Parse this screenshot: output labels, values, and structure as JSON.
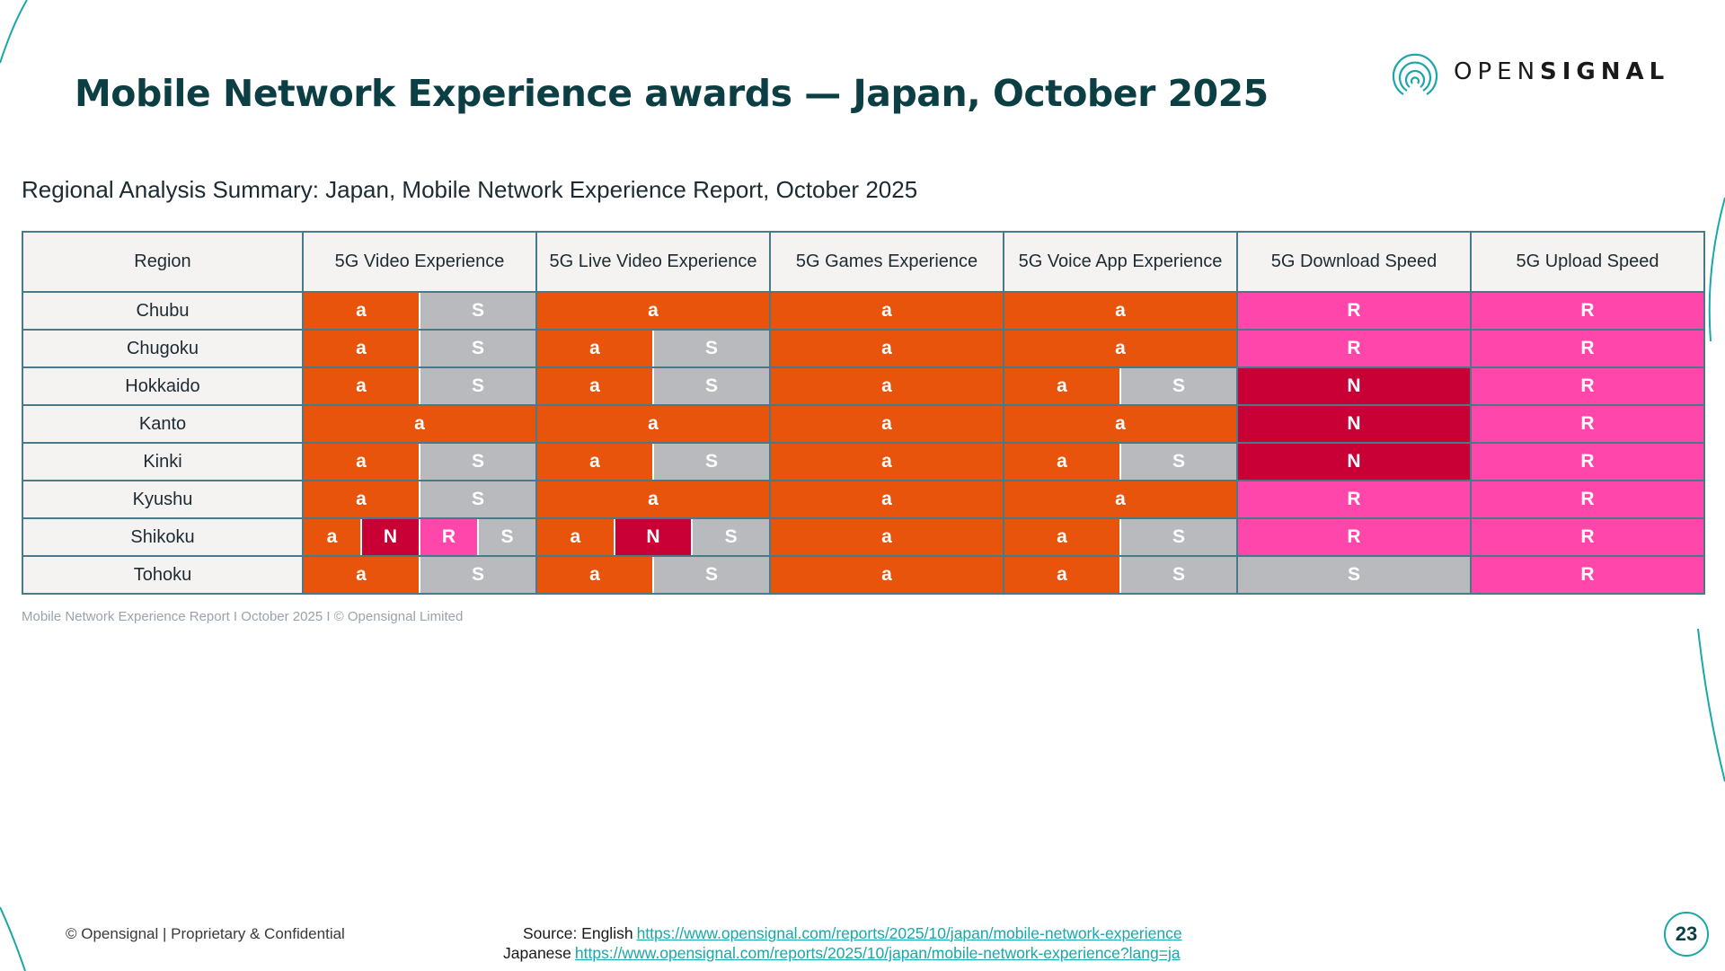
{
  "slide": {
    "title": "Mobile Network Experience awards — Japan, October 2025",
    "subtitle": "Regional Analysis Summary: Japan, Mobile Network Experience Report, October 2025",
    "footnote": "Mobile Network Experience Report I October 2025 I © Opensignal Limited",
    "copyright": "© Opensignal  |  Proprietary & Confidential",
    "page_number": "23"
  },
  "logo": {
    "text_light": "OPEN",
    "text_bold": "SIGNAL",
    "icon": "opensignal-concentric-arcs-icon"
  },
  "source": {
    "label": "Source: English",
    "english_url": "https://www.opensignal.com/reports/2025/10/japan/mobile-network-experience",
    "japanese_label": "Japanese",
    "japanese_url": "https://www.opensignal.com/reports/2025/10/japan/mobile-network-experience?lang=ja"
  },
  "colors": {
    "a": "#e8540c",
    "S": "#b9babd",
    "R": "#ff47ab",
    "N": "#c90035",
    "title": "#0c3f44",
    "accent": "#1aa7a8",
    "border": "#4a7a87",
    "header_bg": "#f5f3f2"
  },
  "table": {
    "columns": [
      "Region",
      "5G Video Experience",
      "5G Live Video Experience",
      "5G Games Experience",
      "5G Voice App Experience",
      "5G Download Speed",
      "5G Upload Speed"
    ],
    "rows": [
      {
        "region": "Chubu",
        "cells": [
          [
            "a",
            "S"
          ],
          [
            "a"
          ],
          [
            "a"
          ],
          [
            "a"
          ],
          [
            "R"
          ],
          [
            "R"
          ]
        ]
      },
      {
        "region": "Chugoku",
        "cells": [
          [
            "a",
            "S"
          ],
          [
            "a",
            "S"
          ],
          [
            "a"
          ],
          [
            "a"
          ],
          [
            "R"
          ],
          [
            "R"
          ]
        ]
      },
      {
        "region": "Hokkaido",
        "cells": [
          [
            "a",
            "S"
          ],
          [
            "a",
            "S"
          ],
          [
            "a"
          ],
          [
            "a",
            "S"
          ],
          [
            "N"
          ],
          [
            "R"
          ]
        ]
      },
      {
        "region": "Kanto",
        "cells": [
          [
            "a"
          ],
          [
            "a"
          ],
          [
            "a"
          ],
          [
            "a"
          ],
          [
            "N"
          ],
          [
            "R"
          ]
        ]
      },
      {
        "region": "Kinki",
        "cells": [
          [
            "a",
            "S"
          ],
          [
            "a",
            "S"
          ],
          [
            "a"
          ],
          [
            "a",
            "S"
          ],
          [
            "N"
          ],
          [
            "R"
          ]
        ]
      },
      {
        "region": "Kyushu",
        "cells": [
          [
            "a",
            "S"
          ],
          [
            "a"
          ],
          [
            "a"
          ],
          [
            "a"
          ],
          [
            "R"
          ],
          [
            "R"
          ]
        ]
      },
      {
        "region": "Shikoku",
        "cells": [
          [
            "a",
            "N",
            "R",
            "S"
          ],
          [
            "a",
            "N",
            "S"
          ],
          [
            "a"
          ],
          [
            "a",
            "S"
          ],
          [
            "R"
          ],
          [
            "R"
          ]
        ]
      },
      {
        "region": "Tohoku",
        "cells": [
          [
            "a",
            "S"
          ],
          [
            "a",
            "S"
          ],
          [
            "a"
          ],
          [
            "a",
            "S"
          ],
          [
            "S"
          ],
          [
            "R"
          ]
        ]
      }
    ]
  }
}
